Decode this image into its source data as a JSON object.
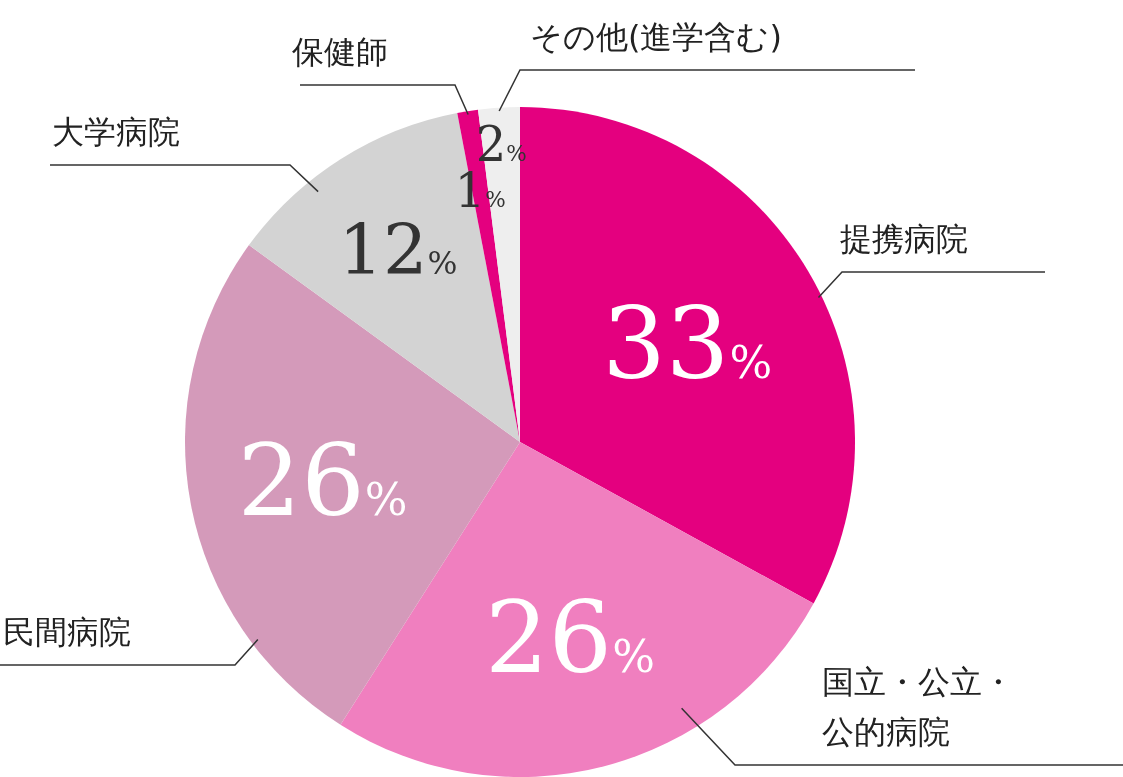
{
  "chart_data": {
    "type": "pie",
    "categories": [
      "提携病院",
      "国立・公立・公的病院",
      "民間病院",
      "大学病院",
      "保健師",
      "その他(進学含む)"
    ],
    "values": [
      33,
      26,
      26,
      12,
      1,
      2
    ],
    "value_labels": [
      "33%",
      "26%",
      "26%",
      "12%",
      "1%",
      "2%"
    ],
    "colors": [
      "#e4007f",
      "#f07fbf",
      "#d49aba",
      "#d3d3d3",
      "#e4007f",
      "#eeeeee"
    ]
  }
}
